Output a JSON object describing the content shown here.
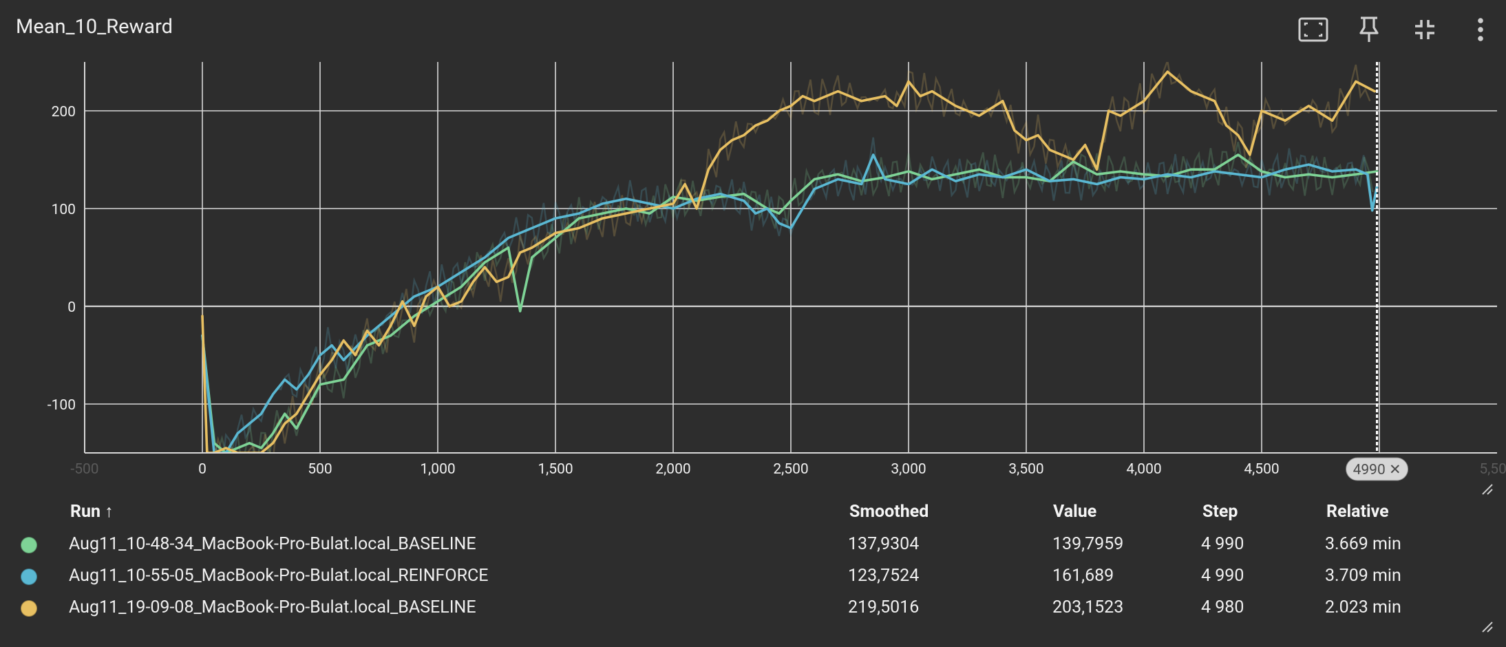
{
  "card": {
    "title": "Mean_10_Reward",
    "toolbar": [
      {
        "name": "fit-domain-icon"
      },
      {
        "name": "pin-icon"
      },
      {
        "name": "collapse-icon"
      },
      {
        "name": "more-vert-icon"
      }
    ]
  },
  "chart_data": {
    "type": "line",
    "title": "",
    "xlabel": "",
    "ylabel": "",
    "xlim": [
      -500,
      5500
    ],
    "ylim": [
      -150,
      250
    ],
    "x_ticks": [
      {
        "value": -500,
        "label": "-500"
      },
      {
        "value": 0,
        "label": "0"
      },
      {
        "value": 500,
        "label": "500"
      },
      {
        "value": 1000,
        "label": "1,000"
      },
      {
        "value": 1500,
        "label": "1,500"
      },
      {
        "value": 2000,
        "label": "2,000"
      },
      {
        "value": 2500,
        "label": "2,500"
      },
      {
        "value": 3000,
        "label": "3,000"
      },
      {
        "value": 3500,
        "label": "3,500"
      },
      {
        "value": 4000,
        "label": "4,000"
      },
      {
        "value": 4500,
        "label": "4,500"
      },
      {
        "value": 5000,
        "label": "5,000"
      },
      {
        "value": 5500,
        "label": "5,500"
      }
    ],
    "y_ticks": [
      {
        "value": -100,
        "label": "-100"
      },
      {
        "value": 0,
        "label": "0"
      },
      {
        "value": 100,
        "label": "100"
      },
      {
        "value": 200,
        "label": "200"
      }
    ],
    "grid": true,
    "cursor_step": 4990,
    "cursor_label": "4990 ✕",
    "series": [
      {
        "color": "#7ed396",
        "x": [
          0,
          50,
          100,
          150,
          200,
          250,
          300,
          350,
          400,
          500,
          600,
          700,
          800,
          900,
          1000,
          1100,
          1200,
          1300,
          1350,
          1400,
          1500,
          1600,
          1700,
          1800,
          1900,
          2000,
          2100,
          2200,
          2300,
          2400,
          2450,
          2500,
          2600,
          2700,
          2800,
          2900,
          3000,
          3100,
          3200,
          3300,
          3400,
          3500,
          3600,
          3700,
          3800,
          3900,
          4000,
          4100,
          4200,
          4300,
          4400,
          4500,
          4600,
          4700,
          4800,
          4900,
          4990
        ],
        "y": [
          -30,
          -140,
          -150,
          -145,
          -140,
          -145,
          -130,
          -110,
          -125,
          -80,
          -75,
          -40,
          -30,
          -10,
          5,
          20,
          45,
          60,
          -5,
          50,
          70,
          90,
          95,
          100,
          95,
          112,
          108,
          112,
          115,
          100,
          95,
          108,
          130,
          135,
          128,
          132,
          138,
          130,
          135,
          140,
          132,
          132,
          128,
          148,
          135,
          138,
          135,
          133,
          140,
          140,
          155,
          138,
          132,
          135,
          132,
          135,
          138
        ]
      },
      {
        "color": "#5ab8d3",
        "x": [
          0,
          50,
          100,
          150,
          200,
          250,
          300,
          350,
          400,
          450,
          500,
          550,
          600,
          700,
          800,
          900,
          1000,
          1100,
          1200,
          1300,
          1400,
          1500,
          1600,
          1700,
          1800,
          1900,
          2000,
          2100,
          2200,
          2300,
          2350,
          2400,
          2450,
          2500,
          2600,
          2700,
          2800,
          2850,
          2900,
          3000,
          3100,
          3200,
          3300,
          3400,
          3500,
          3600,
          3700,
          3800,
          3900,
          4000,
          4100,
          4200,
          4300,
          4400,
          4500,
          4600,
          4700,
          4800,
          4900,
          4950,
          4970,
          4990
        ],
        "y": [
          -30,
          -150,
          -150,
          -130,
          -120,
          -110,
          -90,
          -75,
          -85,
          -70,
          -50,
          -40,
          -55,
          -30,
          -10,
          10,
          20,
          35,
          50,
          70,
          80,
          90,
          95,
          105,
          110,
          105,
          100,
          110,
          115,
          108,
          95,
          100,
          85,
          80,
          120,
          130,
          125,
          155,
          130,
          125,
          140,
          128,
          135,
          132,
          140,
          128,
          130,
          125,
          132,
          130,
          135,
          132,
          138,
          135,
          132,
          140,
          145,
          138,
          140,
          135,
          98,
          123
        ]
      },
      {
        "color": "#e8c062",
        "x": [
          0,
          20,
          50,
          100,
          150,
          200,
          250,
          300,
          350,
          400,
          450,
          500,
          550,
          600,
          650,
          700,
          750,
          800,
          850,
          900,
          950,
          1000,
          1050,
          1100,
          1150,
          1200,
          1250,
          1300,
          1350,
          1400,
          1500,
          1600,
          1700,
          1800,
          1900,
          2000,
          2050,
          2100,
          2150,
          2200,
          2250,
          2300,
          2350,
          2400,
          2450,
          2500,
          2550,
          2600,
          2700,
          2800,
          2900,
          2950,
          3000,
          3050,
          3100,
          3200,
          3300,
          3400,
          3450,
          3500,
          3550,
          3600,
          3700,
          3750,
          3800,
          3850,
          3900,
          4000,
          4050,
          4100,
          4200,
          4300,
          4350,
          4400,
          4450,
          4500,
          4600,
          4700,
          4800,
          4850,
          4900,
          4980
        ],
        "y": [
          -10,
          -150,
          -150,
          -145,
          -150,
          -150,
          -150,
          -140,
          -120,
          -110,
          -90,
          -70,
          -55,
          -35,
          -50,
          -25,
          -40,
          -20,
          5,
          -20,
          10,
          20,
          0,
          5,
          25,
          40,
          25,
          30,
          55,
          60,
          75,
          80,
          90,
          95,
          100,
          105,
          125,
          100,
          140,
          160,
          170,
          175,
          185,
          190,
          200,
          205,
          215,
          210,
          220,
          210,
          215,
          205,
          230,
          215,
          220,
          205,
          195,
          210,
          180,
          170,
          175,
          160,
          150,
          165,
          140,
          200,
          195,
          210,
          225,
          240,
          220,
          210,
          185,
          175,
          155,
          200,
          190,
          205,
          190,
          210,
          230,
          220
        ]
      }
    ]
  },
  "runs_table": {
    "headers": {
      "run": "Run ↑",
      "smoothed": "Smoothed",
      "value": "Value",
      "step": "Step",
      "relative": "Relative"
    },
    "rows": [
      {
        "color": "#7ed396",
        "run": "Aug11_10-48-34_MacBook-Pro-Bulat.local_BASELINE",
        "smoothed": "137,9304",
        "value": "139,7959",
        "step": "4 990",
        "relative": "3.669 min"
      },
      {
        "color": "#5ab8d3",
        "run": "Aug11_10-55-05_MacBook-Pro-Bulat.local_REINFORCE",
        "smoothed": "123,7524",
        "value": "161,689",
        "step": "4 990",
        "relative": "3.709 min"
      },
      {
        "color": "#e8c062",
        "run": "Aug11_19-09-08_MacBook-Pro-Bulat.local_BASELINE",
        "smoothed": "219,5016",
        "value": "203,1523",
        "step": "4 980",
        "relative": "2.023 min"
      }
    ]
  },
  "colors": {
    "background": "#2d2d2d",
    "grid": "#d8d8d8",
    "text": "#ffffff"
  }
}
